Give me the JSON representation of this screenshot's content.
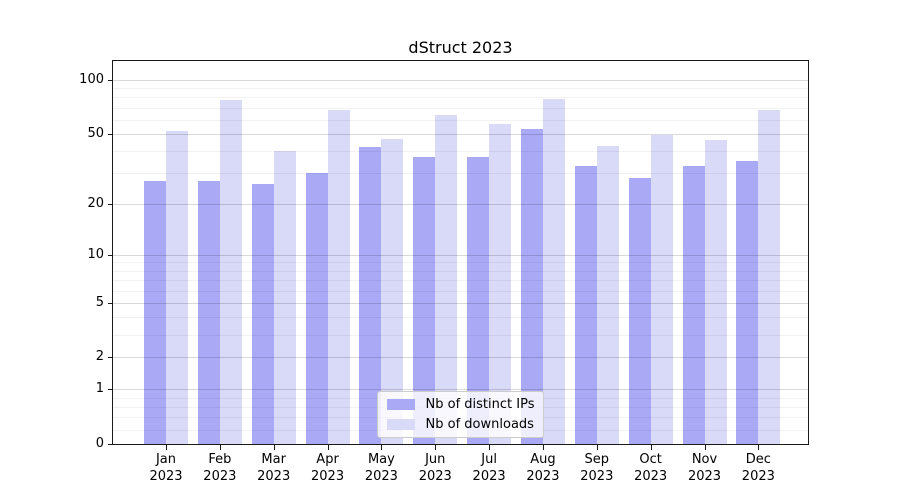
{
  "chart_data": {
    "type": "bar",
    "title": "dStruct 2023",
    "categories": [
      "Jan 2023",
      "Feb 2023",
      "Mar 2023",
      "Apr 2023",
      "May 2023",
      "Jun 2023",
      "Jul 2023",
      "Aug 2023",
      "Sep 2023",
      "Oct 2023",
      "Nov 2023",
      "Dec 2023"
    ],
    "series": [
      {
        "name": "Nb of distinct IPs",
        "color": "#a9a9f6",
        "values": [
          27,
          27,
          26,
          30,
          42,
          37,
          37,
          53,
          33,
          28,
          33,
          35
        ]
      },
      {
        "name": "Nb of downloads",
        "color": "#d9d9f8",
        "values": [
          52,
          77,
          40,
          68,
          47,
          64,
          57,
          78,
          43,
          49,
          46,
          68
        ]
      }
    ],
    "xlabel": "",
    "ylabel": "",
    "yscale": "log1p",
    "ylim": [
      0,
      126
    ],
    "yticks": [
      100,
      50,
      20,
      10,
      5,
      2,
      1,
      0
    ],
    "minor_yticks": [
      0.2,
      0.4,
      0.6,
      0.8,
      3,
      4,
      6,
      7,
      8,
      9,
      30,
      40,
      60,
      70,
      80,
      90
    ],
    "grid": true,
    "legend_position": "lower center"
  }
}
